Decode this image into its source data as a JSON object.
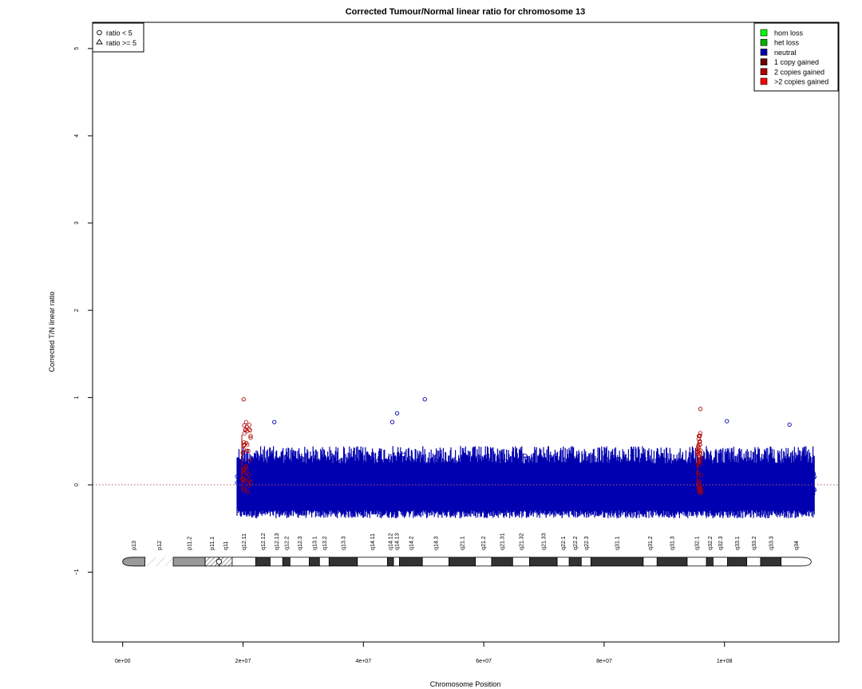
{
  "chart_data": {
    "type": "scatter",
    "title": "Corrected Tumour/Normal linear ratio for chromosome  13",
    "xlabel": "Chromosome Position",
    "ylabel": "Corrected T/N linear ratio",
    "xlim": [
      -5000000,
      119000000
    ],
    "ylim": [
      -1.8,
      5.3
    ],
    "x_ticks": [
      {
        "value": 0,
        "label": "0e+00"
      },
      {
        "value": 20000000,
        "label": "2e+07"
      },
      {
        "value": 40000000,
        "label": "4e+07"
      },
      {
        "value": 60000000,
        "label": "6e+07"
      },
      {
        "value": 80000000,
        "label": "8e+07"
      },
      {
        "value": 100000000,
        "label": "1e+08"
      }
    ],
    "y_ticks": [
      {
        "value": -1,
        "label": "−1"
      },
      {
        "value": 0,
        "label": "0"
      },
      {
        "value": 1,
        "label": "1"
      },
      {
        "value": 2,
        "label": "2"
      },
      {
        "value": 3,
        "label": "3"
      },
      {
        "value": 4,
        "label": "4"
      },
      {
        "value": 5,
        "label": "5"
      }
    ],
    "reference_line": {
      "y": 0,
      "style": "dotted",
      "color": "#b06060"
    },
    "grid": false,
    "neutral_band": {
      "x_range": [
        19000000,
        115000000
      ],
      "note": "dense neutral point cloud",
      "approx_low": -0.4,
      "approx_high": 0.5
    },
    "outlier_points": [
      {
        "x": 20100000,
        "y": 0.98
      },
      {
        "x": 50200000,
        "y": 0.98
      },
      {
        "x": 96000000,
        "y": 0.87
      },
      {
        "x": 45600000,
        "y": 0.82
      },
      {
        "x": 44800000,
        "y": 0.72
      },
      {
        "x": 25200000,
        "y": 0.72
      },
      {
        "x": 100400000,
        "y": 0.73
      },
      {
        "x": 110800000,
        "y": 0.69
      }
    ],
    "gained_regions": [
      {
        "x_start": 19800000,
        "x_end": 21300000,
        "label": "1 copy gained",
        "max_y": 0.72
      },
      {
        "x_start": 95500000,
        "x_end": 96100000,
        "label": "1 copy gained",
        "max_y": 0.6
      }
    ],
    "legends": {
      "shape": {
        "position": "top-left",
        "entries": [
          {
            "symbol": "circle",
            "label": "ratio < 5"
          },
          {
            "symbol": "triangle",
            "label": "ratio >= 5"
          }
        ]
      },
      "state": {
        "position": "top-right",
        "entries": [
          {
            "label": "hom loss",
            "color": "#00ff00"
          },
          {
            "label": "het loss",
            "color": "#00b000"
          },
          {
            "label": "neutral",
            "color": "#0000b0"
          },
          {
            "label": "1 copy gained",
            "color": "#6a0000"
          },
          {
            "label": "2 copies gained",
            "color": "#b00000"
          },
          {
            "label": ">2 copies gained",
            "color": "#ff0000"
          }
        ]
      }
    },
    "ideogram": {
      "y": -0.88,
      "bands": [
        {
          "name": "p13",
          "start": 0,
          "end": 3700000,
          "stain": "gvar"
        },
        {
          "name": "p12",
          "start": 3700000,
          "end": 8400000,
          "stain": "stalk"
        },
        {
          "name": "p11.2",
          "start": 8400000,
          "end": 13700000,
          "stain": "gvar"
        },
        {
          "name": "p11.1",
          "start": 13700000,
          "end": 16000000,
          "stain": "acen"
        },
        {
          "name": "q11",
          "start": 16000000,
          "end": 18200000,
          "stain": "acen"
        },
        {
          "name": "q12.11",
          "start": 18200000,
          "end": 22100000,
          "stain": "gneg"
        },
        {
          "name": "q12.12",
          "start": 22100000,
          "end": 24500000,
          "stain": "gpos"
        },
        {
          "name": "q12.13",
          "start": 24500000,
          "end": 26600000,
          "stain": "gneg"
        },
        {
          "name": "q12.2",
          "start": 26600000,
          "end": 27800000,
          "stain": "gpos"
        },
        {
          "name": "q12.3",
          "start": 27800000,
          "end": 31000000,
          "stain": "gneg"
        },
        {
          "name": "q13.1",
          "start": 31000000,
          "end": 32700000,
          "stain": "gpos"
        },
        {
          "name": "q13.2",
          "start": 32700000,
          "end": 34300000,
          "stain": "gneg"
        },
        {
          "name": "q13.3",
          "start": 34300000,
          "end": 39000000,
          "stain": "gpos"
        },
        {
          "name": "q14.11",
          "start": 39000000,
          "end": 44000000,
          "stain": "gneg"
        },
        {
          "name": "q14.12",
          "start": 44000000,
          "end": 45000000,
          "stain": "gpos"
        },
        {
          "name": "q14.13",
          "start": 45000000,
          "end": 46000000,
          "stain": "gneg"
        },
        {
          "name": "q14.2",
          "start": 46000000,
          "end": 49800000,
          "stain": "gpos"
        },
        {
          "name": "q14.3",
          "start": 49800000,
          "end": 54200000,
          "stain": "gneg"
        },
        {
          "name": "q21.1",
          "start": 54200000,
          "end": 58600000,
          "stain": "gpos"
        },
        {
          "name": "q21.2",
          "start": 58600000,
          "end": 61300000,
          "stain": "gneg"
        },
        {
          "name": "q21.31",
          "start": 61300000,
          "end": 64800000,
          "stain": "gpos"
        },
        {
          "name": "q21.32",
          "start": 64800000,
          "end": 67600000,
          "stain": "gneg"
        },
        {
          "name": "q21.33",
          "start": 67600000,
          "end": 72200000,
          "stain": "gpos"
        },
        {
          "name": "q22.1",
          "start": 72200000,
          "end": 74200000,
          "stain": "gneg"
        },
        {
          "name": "q22.2",
          "start": 74200000,
          "end": 76200000,
          "stain": "gpos"
        },
        {
          "name": "q22.3",
          "start": 76200000,
          "end": 77800000,
          "stain": "gneg"
        },
        {
          "name": "q31.1",
          "start": 77800000,
          "end": 86500000,
          "stain": "gpos"
        },
        {
          "name": "q31.2",
          "start": 86500000,
          "end": 88800000,
          "stain": "gneg"
        },
        {
          "name": "q31.3",
          "start": 88800000,
          "end": 93800000,
          "stain": "gpos"
        },
        {
          "name": "q32.1",
          "start": 93800000,
          "end": 97000000,
          "stain": "gneg"
        },
        {
          "name": "q32.2",
          "start": 97000000,
          "end": 98100000,
          "stain": "gpos"
        },
        {
          "name": "q32.3",
          "start": 98100000,
          "end": 100500000,
          "stain": "gneg"
        },
        {
          "name": "q33.1",
          "start": 100500000,
          "end": 103700000,
          "stain": "gpos"
        },
        {
          "name": "q33.2",
          "start": 103700000,
          "end": 106000000,
          "stain": "gneg"
        },
        {
          "name": "q33.3",
          "start": 106000000,
          "end": 109400000,
          "stain": "gpos"
        },
        {
          "name": "q34",
          "start": 109400000,
          "end": 114400000,
          "stain": "gneg"
        }
      ]
    }
  }
}
